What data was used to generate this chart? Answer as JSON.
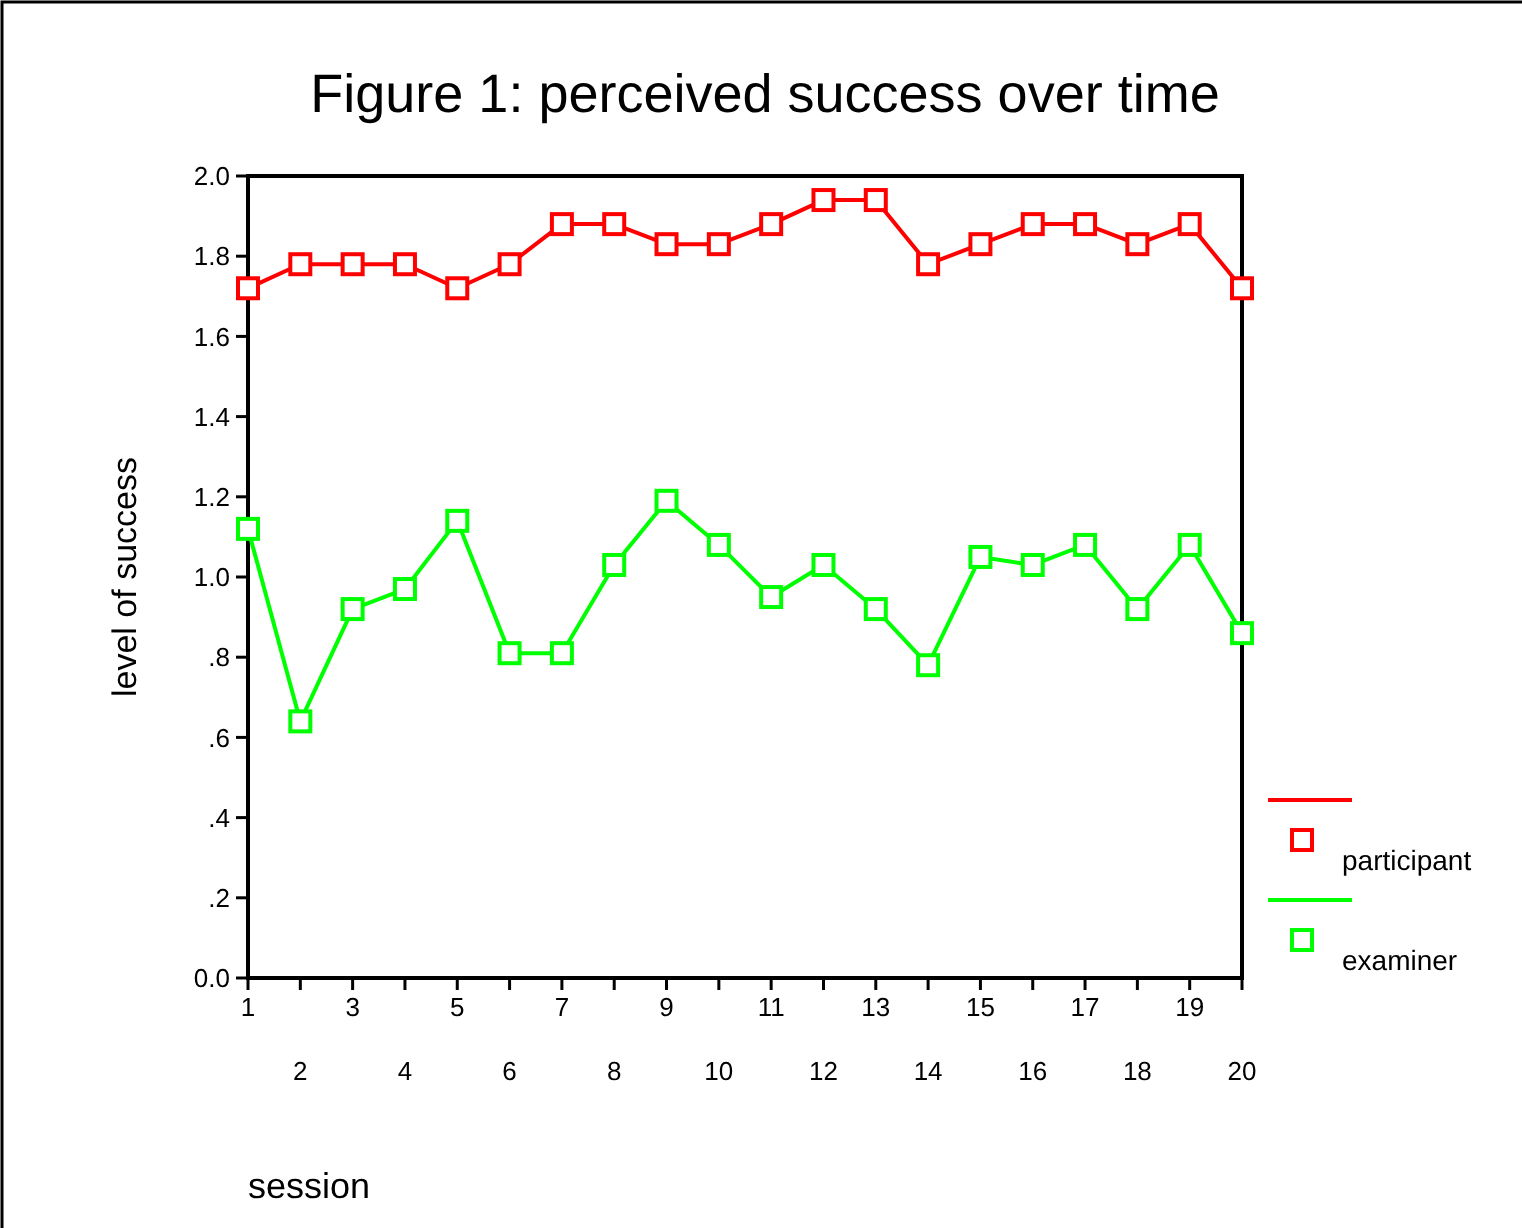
{
  "chart_data": {
    "type": "line",
    "title": "Figure 1: perceived success over time",
    "xlabel": "session",
    "ylabel": "level of success",
    "categories": [
      "1",
      "2",
      "3",
      "4",
      "5",
      "6",
      "7",
      "8",
      "9",
      "10",
      "11",
      "12",
      "13",
      "14",
      "15",
      "16",
      "17",
      "18",
      "19",
      "20"
    ],
    "series": [
      {
        "name": "participant",
        "color": "#ff0000",
        "values": [
          1.72,
          1.78,
          1.78,
          1.78,
          1.72,
          1.78,
          1.88,
          1.88,
          1.83,
          1.83,
          1.88,
          1.94,
          1.94,
          1.78,
          1.83,
          1.88,
          1.88,
          1.83,
          1.88,
          1.72
        ]
      },
      {
        "name": "examiner",
        "color": "#00ff00",
        "values": [
          1.12,
          0.64,
          0.92,
          0.97,
          1.14,
          0.81,
          0.81,
          1.03,
          1.19,
          1.08,
          0.95,
          1.03,
          0.92,
          0.78,
          1.05,
          1.03,
          1.08,
          0.92,
          1.08,
          0.86
        ]
      }
    ],
    "ylim": [
      0,
      2
    ],
    "yticks": [
      {
        "value": 0,
        "label": "0.0"
      },
      {
        "value": 0.2,
        "label": ".2"
      },
      {
        "value": 0.4,
        "label": ".4"
      },
      {
        "value": 0.6,
        "label": ".6"
      },
      {
        "value": 0.8,
        "label": ".8"
      },
      {
        "value": 1,
        "label": "1.0"
      },
      {
        "value": 1.2,
        "label": "1.2"
      },
      {
        "value": 1.4,
        "label": "1.4"
      },
      {
        "value": 1.6,
        "label": "1.6"
      },
      {
        "value": 1.8,
        "label": "1.8"
      },
      {
        "value": 2,
        "label": "2.0"
      }
    ],
    "grid": false,
    "legend": "right",
    "marker": "square",
    "line_style": "solid"
  }
}
